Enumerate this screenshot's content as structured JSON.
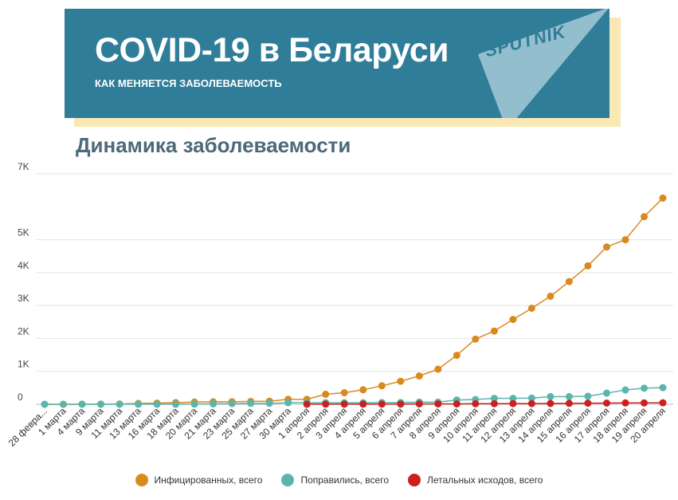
{
  "banner": {
    "title": "COVID-19 в Беларуси",
    "subtitle": "КАК МЕНЯЕТСЯ ЗАБОЛЕВАЕМОСТЬ",
    "logo_text": "SPUTNIK",
    "color": "#2f7d98",
    "shadow_color": "#f9e7b4"
  },
  "chart_data": {
    "type": "line",
    "title": "Динамика заболеваемости",
    "xlabel": "",
    "ylabel": "",
    "ylim": [
      0,
      7000
    ],
    "yticks": [
      {
        "value": 0,
        "label": "0"
      },
      {
        "value": 1000,
        "label": "1K"
      },
      {
        "value": 2000,
        "label": "2K"
      },
      {
        "value": 3000,
        "label": "3K"
      },
      {
        "value": 4000,
        "label": "4K"
      },
      {
        "value": 5000,
        "label": "5K"
      },
      {
        "value": 7000,
        "label": "7K"
      }
    ],
    "grid": true,
    "legend_position": "bottom",
    "categories": [
      "28 февраля",
      "1 марта",
      "4 марта",
      "9 марта",
      "11 марта",
      "13 марта",
      "16 марта",
      "18 марта",
      "20 марта",
      "21 марта",
      "23 марта",
      "25 марта",
      "27 марта",
      "30 марта",
      "1 апреля",
      "2 апреля",
      "3 апреля",
      "4 апреля",
      "5 апреля",
      "6 апреля",
      "7 апреля",
      "8 апреля",
      "9 апреля",
      "10 апреля",
      "11 апреля",
      "12 апреля",
      "13 апреля",
      "14 апреля",
      "15 апреля",
      "16 апреля",
      "17 апреля",
      "18 апреля",
      "19 апреля",
      "20 апреля"
    ],
    "category_labels": [
      "28 февра...",
      "1 марта",
      "4 марта",
      "9 марта",
      "11 марта",
      "13 марта",
      "16 марта",
      "18 марта",
      "20 марта",
      "21 марта",
      "23 марта",
      "25 марта",
      "27 марта",
      "30 марта",
      "1 апреля",
      "2 апреля",
      "3 апреля",
      "4 апреля",
      "5 апреля",
      "6 апреля",
      "7 апреля",
      "8 апреля",
      "9 апреля",
      "10 апреля",
      "11 апреля",
      "12 апреля",
      "13 апреля",
      "14 апреля",
      "15 апреля",
      "16 апреля",
      "17 апреля",
      "18 апреля",
      "19 апреля",
      "20 апреля"
    ],
    "series": [
      {
        "name": "Инфицированных, всего",
        "color": "#d98a1e",
        "values": [
          1,
          1,
          6,
          6,
          9,
          27,
          36,
          51,
          69,
          76,
          81,
          86,
          94,
          152,
          152,
          304,
          351,
          440,
          562,
          700,
          861,
          1066,
          1486,
          1981,
          2226,
          2578,
          2919,
          3281,
          3728,
          4204,
          4779,
          5000,
          5700,
          6264
        ]
      },
      {
        "name": "Поправились, всего",
        "color": "#5ab5ad",
        "values": [
          0,
          0,
          0,
          0,
          3,
          3,
          3,
          3,
          5,
          15,
          22,
          29,
          32,
          48,
          48,
          48,
          48,
          48,
          53,
          53,
          67,
          69,
          131,
          145,
          182,
          182,
          188,
          233,
          233,
          244,
          338,
          436,
          490,
          507
        ]
      },
      {
        "name": "Летальных исходов, всего",
        "color": "#cc2020",
        "values": [
          null,
          null,
          null,
          null,
          null,
          null,
          null,
          null,
          null,
          null,
          null,
          null,
          null,
          null,
          2,
          4,
          4,
          5,
          8,
          8,
          13,
          13,
          13,
          16,
          19,
          23,
          23,
          26,
          29,
          33,
          36,
          40,
          42,
          45
        ]
      }
    ]
  }
}
